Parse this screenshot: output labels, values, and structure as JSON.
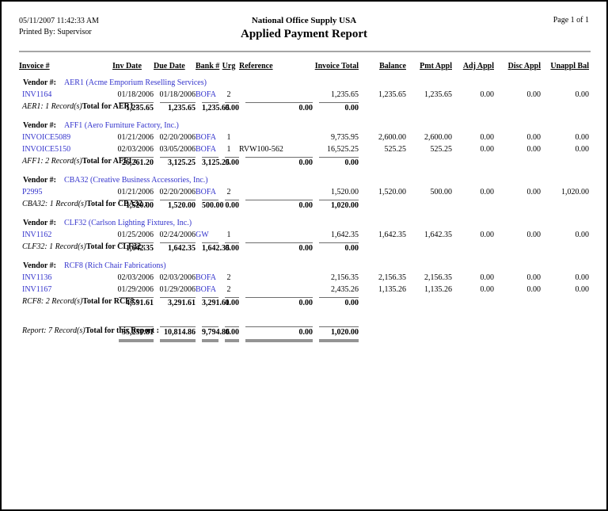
{
  "page": {
    "printed_date_time": "05/11/2007   11:42:33 AM",
    "printed_by": "Printed By: Supervisor",
    "company": "National Office Supply USA",
    "report_title": "Applied Payment Report",
    "page_label": "Page 1 of 1"
  },
  "colors": {
    "link_blue": "#3333cc",
    "header_rule_gray": "#a6a6a6",
    "grand_total_bar_gray": "#949494",
    "total_line_gray": "#6e6e6e"
  },
  "columns": [
    "Invoice #",
    "Inv Date",
    "Due Date",
    "Bank #",
    "Urg",
    "Reference",
    "Invoice Total",
    "Balance",
    "Pmt Appl",
    "Adj Appl",
    "Disc Appl",
    "Unappl Bal"
  ],
  "vendor_label": "Vendor #:",
  "sections": [
    {
      "vendor": "AER1 (Acme Emporium Reselling Services)",
      "rows": [
        {
          "invoice": "INV1164",
          "inv_date": "01/18/2006",
          "due_date": "01/18/2006",
          "bank": "BOFA",
          "urg": "2",
          "reference": "",
          "amounts": [
            "1,235.65",
            "1,235.65",
            "1,235.65",
            "0.00",
            "0.00",
            "0.00"
          ]
        }
      ],
      "record_note": "AER1: 1 Record(s)",
      "total_label": "Total for AER1 :",
      "totals": [
        "1,235.65",
        "1,235.65",
        "1,235.65",
        "0.00",
        "0.00",
        "0.00"
      ]
    },
    {
      "vendor": "AFF1 (Aero Furniture Factory, Inc.)",
      "rows": [
        {
          "invoice": "INVOICE5089",
          "inv_date": "01/21/2006",
          "due_date": "02/20/2006",
          "bank": "BOFA",
          "urg": "1",
          "reference": "",
          "amounts": [
            "9,735.95",
            "2,600.00",
            "2,600.00",
            "0.00",
            "0.00",
            "0.00"
          ]
        },
        {
          "invoice": "INVOICE5150",
          "inv_date": "02/03/2006",
          "due_date": "03/05/2006",
          "bank": "BOFA",
          "urg": "1",
          "reference": "RVW100-562",
          "amounts": [
            "16,525.25",
            "525.25",
            "525.25",
            "0.00",
            "0.00",
            "0.00"
          ]
        }
      ],
      "record_note": "AFF1: 2 Record(s)",
      "total_label": "Total for AFF1 :",
      "totals": [
        "26,261.20",
        "3,125.25",
        "3,125.25",
        "0.00",
        "0.00",
        "0.00"
      ]
    },
    {
      "vendor": "CBA32 (Creative Business Accessories, Inc.)",
      "rows": [
        {
          "invoice": "P2995",
          "inv_date": "01/21/2006",
          "due_date": "02/20/2006",
          "bank": "BOFA",
          "urg": "2",
          "reference": "",
          "amounts": [
            "1,520.00",
            "1,520.00",
            "500.00",
            "0.00",
            "0.00",
            "1,020.00"
          ]
        }
      ],
      "record_note": "CBA32: 1 Record(s)",
      "total_label": "Total for CBA32 :",
      "totals": [
        "1,520.00",
        "1,520.00",
        "500.00",
        "0.00",
        "0.00",
        "1,020.00"
      ]
    },
    {
      "vendor": "CLF32 (Carlson Lighting Fixtures, Inc.)",
      "rows": [
        {
          "invoice": "INV1162",
          "inv_date": "01/25/2006",
          "due_date": "02/24/2006",
          "bank": "GW",
          "urg": "1",
          "reference": "",
          "amounts": [
            "1,642.35",
            "1,642.35",
            "1,642.35",
            "0.00",
            "0.00",
            "0.00"
          ]
        }
      ],
      "record_note": "CLF32: 1 Record(s)",
      "total_label": "Total for CLF32 :",
      "totals": [
        "1,642.35",
        "1,642.35",
        "1,642.35",
        "0.00",
        "0.00",
        "0.00"
      ]
    },
    {
      "vendor": "RCF8 (Rich Chair Fabrications)",
      "rows": [
        {
          "invoice": "INV1136",
          "inv_date": "02/03/2006",
          "due_date": "02/03/2006",
          "bank": "BOFA",
          "urg": "2",
          "reference": "",
          "amounts": [
            "2,156.35",
            "2,156.35",
            "2,156.35",
            "0.00",
            "0.00",
            "0.00"
          ]
        },
        {
          "invoice": "INV1167",
          "inv_date": "01/29/2006",
          "due_date": "01/29/2006",
          "bank": "BOFA",
          "urg": "2",
          "reference": "",
          "amounts": [
            "2,435.26",
            "1,135.26",
            "1,135.26",
            "0.00",
            "0.00",
            "0.00"
          ]
        }
      ],
      "record_note": "RCF8: 2 Record(s)",
      "total_label": "Total for RCF8 :",
      "totals": [
        "4,591.61",
        "3,291.61",
        "3,291.61",
        "0.00",
        "0.00",
        "0.00"
      ]
    }
  ],
  "report_total": {
    "record_note": "Report: 7 Record(s)",
    "total_label": "Total for this Report :",
    "totals": [
      "35,250.81",
      "10,814.86",
      "9,794.86",
      "0.00",
      "0.00",
      "1,020.00"
    ]
  }
}
